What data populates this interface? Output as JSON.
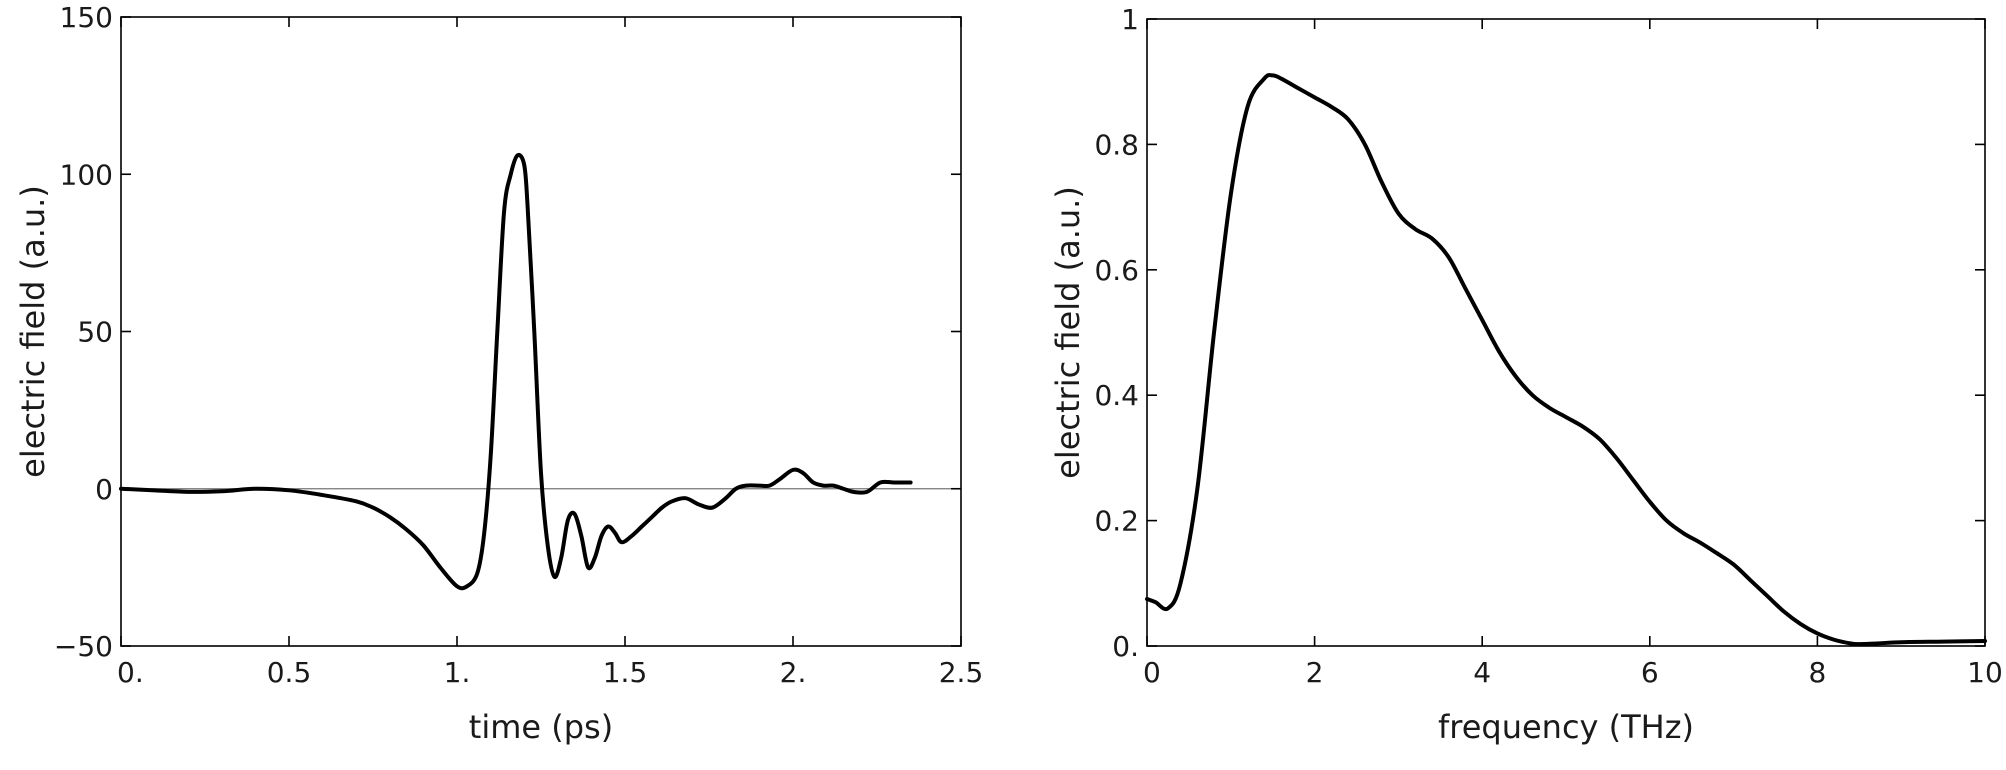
{
  "chart_data": [
    {
      "type": "line",
      "xlabel": "time (ps)",
      "ylabel": "electric field (a.u.)",
      "xlim": [
        0,
        2.5
      ],
      "ylim": [
        -50,
        150
      ],
      "x_ticks": [
        {
          "value": 0,
          "label": "0."
        },
        {
          "value": 0.5,
          "label": "0.5"
        },
        {
          "value": 1,
          "label": "1."
        },
        {
          "value": 1.5,
          "label": "1.5"
        },
        {
          "value": 2,
          "label": "2."
        },
        {
          "value": 2.5,
          "label": "2.5"
        }
      ],
      "y_ticks": [
        {
          "value": -50,
          "label": "−50"
        },
        {
          "value": 0,
          "label": "0"
        },
        {
          "value": 50,
          "label": "50"
        },
        {
          "value": 100,
          "label": "100"
        },
        {
          "value": 150,
          "label": "150"
        }
      ],
      "reference_line_y": 0,
      "series": [
        {
          "x": [
            0,
            0.1,
            0.2,
            0.3,
            0.4,
            0.5,
            0.6,
            0.7,
            0.75,
            0.8,
            0.85,
            0.9,
            0.95,
            1.0,
            1.03,
            1.06,
            1.08,
            1.1,
            1.12,
            1.14,
            1.16,
            1.18,
            1.2,
            1.21,
            1.23,
            1.25,
            1.27,
            1.29,
            1.31,
            1.33,
            1.35,
            1.37,
            1.39,
            1.41,
            1.43,
            1.45,
            1.47,
            1.49,
            1.52,
            1.55,
            1.58,
            1.61,
            1.64,
            1.68,
            1.72,
            1.76,
            1.8,
            1.83,
            1.86,
            1.9,
            1.93,
            1.96,
            2.0,
            2.03,
            2.06,
            2.09,
            2.12,
            2.15,
            2.18,
            2.22,
            2.26,
            2.3,
            2.33,
            2.35
          ],
          "y": [
            0,
            -0.5,
            -1,
            -0.8,
            0,
            -0.5,
            -2,
            -4,
            -6,
            -9,
            -13,
            -18,
            -25,
            -31,
            -31,
            -27,
            -15,
            10,
            50,
            88,
            100,
            106,
            103,
            90,
            50,
            5,
            -18,
            -28,
            -22,
            -10,
            -8,
            -15,
            -25,
            -22,
            -15,
            -12,
            -14,
            -17,
            -15,
            -12,
            -9,
            -6,
            -4,
            -3,
            -5,
            -6,
            -3,
            0,
            1,
            1,
            1,
            3,
            6,
            5,
            2,
            1,
            1,
            0,
            -1,
            -1,
            2,
            2,
            2,
            2
          ],
          "color": "#000000"
        }
      ]
    },
    {
      "type": "line",
      "xlabel": "frequency (THz)",
      "ylabel": "electric field (a.u.)",
      "xlim": [
        0,
        10
      ],
      "ylim": [
        0,
        1
      ],
      "x_ticks": [
        {
          "value": 0,
          "label": "0"
        },
        {
          "value": 2,
          "label": "2"
        },
        {
          "value": 4,
          "label": "4"
        },
        {
          "value": 6,
          "label": "6"
        },
        {
          "value": 8,
          "label": "8"
        },
        {
          "value": 10,
          "label": "10"
        }
      ],
      "y_ticks": [
        {
          "value": 0,
          "label": "0."
        },
        {
          "value": 0.2,
          "label": "0.2"
        },
        {
          "value": 0.4,
          "label": "0.4"
        },
        {
          "value": 0.6,
          "label": "0.6"
        },
        {
          "value": 0.8,
          "label": "0.8"
        },
        {
          "value": 1,
          "label": "1"
        }
      ],
      "series": [
        {
          "x": [
            0,
            0.1,
            0.25,
            0.4,
            0.6,
            0.8,
            1.0,
            1.2,
            1.4,
            1.5,
            1.6,
            1.8,
            2.0,
            2.2,
            2.4,
            2.6,
            2.8,
            3.0,
            3.2,
            3.4,
            3.6,
            3.8,
            4.0,
            4.2,
            4.4,
            4.6,
            4.8,
            5.0,
            5.2,
            5.4,
            5.6,
            5.8,
            6.0,
            6.2,
            6.4,
            6.6,
            6.8,
            7.0,
            7.2,
            7.4,
            7.6,
            7.8,
            8.0,
            8.2,
            8.4,
            8.5,
            8.7,
            9.0,
            9.5,
            10.0
          ],
          "y": [
            0.075,
            0.07,
            0.06,
            0.1,
            0.25,
            0.5,
            0.72,
            0.86,
            0.905,
            0.91,
            0.905,
            0.89,
            0.875,
            0.86,
            0.84,
            0.8,
            0.74,
            0.69,
            0.665,
            0.65,
            0.62,
            0.57,
            0.52,
            0.47,
            0.43,
            0.4,
            0.38,
            0.365,
            0.35,
            0.33,
            0.3,
            0.265,
            0.23,
            0.2,
            0.18,
            0.165,
            0.148,
            0.13,
            0.105,
            0.08,
            0.055,
            0.035,
            0.02,
            0.01,
            0.004,
            0.003,
            0.004,
            0.006,
            0.007,
            0.008
          ],
          "color": "#000000"
        }
      ]
    }
  ]
}
